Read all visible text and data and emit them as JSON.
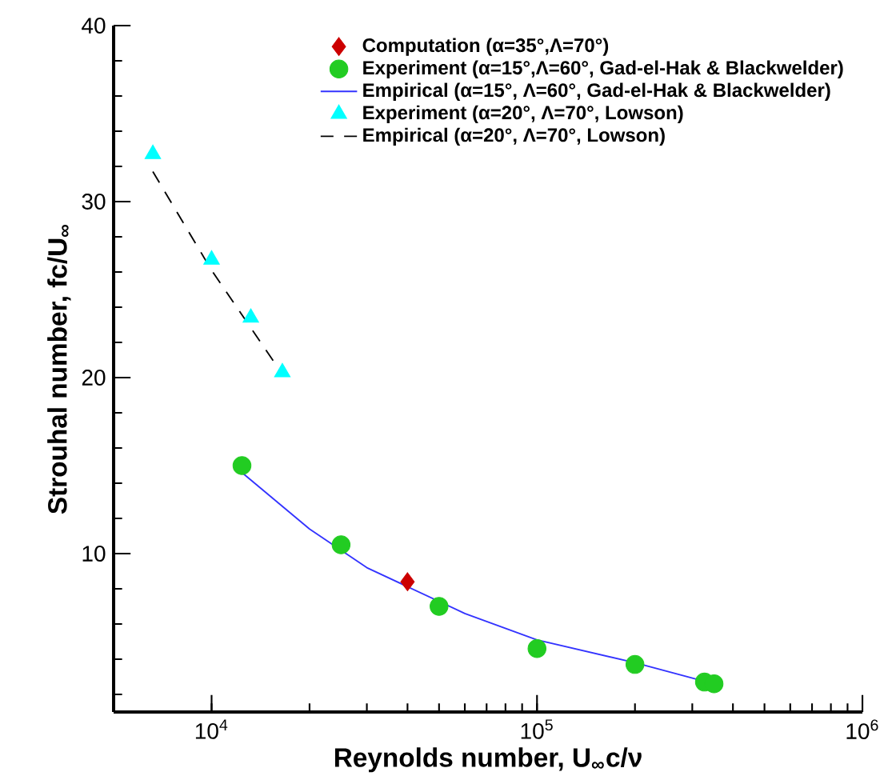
{
  "chart_data": {
    "type": "scatter",
    "xlabel": "Reynolds number, U$_{∞}$c/ν",
    "ylabel": "Strouhal number, fc/U$_{∞}$",
    "log": "x",
    "xlim": [
      5000,
      1000000
    ],
    "ylim": [
      1,
      40
    ],
    "xticks": [
      {
        "value": 10000,
        "label": "10$^{4}$"
      },
      {
        "value": 100000,
        "label": "10$^{5}$"
      },
      {
        "value": 1000000,
        "label": "10$^{6}$"
      }
    ],
    "yticks": [
      {
        "value": 2,
        "label": null
      },
      {
        "value": 4,
        "label": null
      },
      {
        "value": 6,
        "label": null
      },
      {
        "value": 8,
        "label": null
      },
      10,
      {
        "value": 12,
        "label": null
      },
      {
        "value": 14,
        "label": null
      },
      {
        "value": 16,
        "label": null
      },
      {
        "value": 18,
        "label": null
      },
      20,
      {
        "value": 22,
        "label": null
      },
      {
        "value": 24,
        "label": null
      },
      {
        "value": 26,
        "label": null
      },
      {
        "value": 28,
        "label": null
      },
      30,
      {
        "value": 32,
        "label": null
      },
      {
        "value": 34,
        "label": null
      },
      {
        "value": 36,
        "label": null
      },
      {
        "value": 38,
        "label": null
      },
      40
    ],
    "legend": "top right",
    "series": [
      {
        "name": "Computation (α=35°,Λ=70°)",
        "marker": "diamond",
        "color": "#cc0000",
        "x": [
          40000
        ],
        "values": [
          8.4
        ]
      },
      {
        "name": "Experiment (α=15°,Λ=60°, Gad-el-Hak & Blackwelder)",
        "marker": "circle",
        "color": "#22cc22",
        "x": [
          12400,
          25000,
          50000,
          100000,
          200000,
          327000,
          350000
        ],
        "values": [
          15.0,
          10.5,
          7.0,
          4.6,
          3.7,
          2.7,
          2.6
        ]
      },
      {
        "name": "Empirical (α=15°, Λ=60°, Gad-el-Hak & Blackwelder)",
        "type": "line",
        "line_style": "solid",
        "color": "#3333ff",
        "x": [
          12400,
          20000,
          30000,
          60000,
          100000,
          200000,
          350000
        ],
        "values": [
          14.6,
          11.4,
          9.2,
          6.6,
          5.1,
          3.8,
          2.6
        ]
      },
      {
        "name": "Experiment (α=20°, Λ=70°, Lowson)",
        "marker": "triangle",
        "color": "#00ffff",
        "x": [
          6600,
          10000,
          13200,
          16500
        ],
        "values": [
          32.7,
          26.7,
          23.4,
          20.3
        ]
      },
      {
        "name": "Empirical (α=20°, Λ=70°, Lowson)",
        "type": "line",
        "line_style": "dashed",
        "color": "#000000",
        "x": [
          6600,
          10000,
          16500
        ],
        "values": [
          31.7,
          26.1,
          20.2
        ]
      }
    ]
  }
}
